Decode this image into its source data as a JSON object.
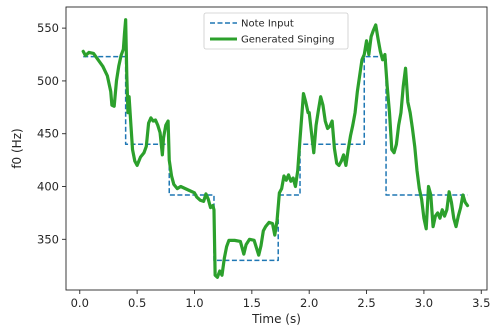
{
  "chart_data": {
    "type": "line",
    "title": "",
    "xlabel": "Time (s)",
    "ylabel": "f0 (Hz)",
    "xlim": [
      -0.12,
      3.55
    ],
    "ylim": [
      302,
      570
    ],
    "xticks": [
      0.0,
      0.5,
      1.0,
      1.5,
      2.0,
      2.5,
      3.0,
      3.5
    ],
    "xtick_labels": [
      "0.0",
      "0.5",
      "1.0",
      "1.5",
      "2.0",
      "2.5",
      "3.0",
      "3.5"
    ],
    "yticks": [
      350,
      400,
      450,
      500,
      550
    ],
    "ytick_labels": [
      "350",
      "400",
      "450",
      "500",
      "550"
    ],
    "grid": false,
    "legend": {
      "placement": "top-center"
    },
    "series": [
      {
        "name": "Note Input",
        "style": "dashed",
        "color": "#1f77b4",
        "points": [
          [
            0.03,
            523
          ],
          [
            0.4,
            523
          ],
          [
            0.4,
            440
          ],
          [
            0.78,
            440
          ],
          [
            0.78,
            392
          ],
          [
            1.17,
            392
          ],
          [
            1.17,
            330
          ],
          [
            1.73,
            330
          ],
          [
            1.73,
            392
          ],
          [
            1.92,
            392
          ],
          [
            1.92,
            440
          ],
          [
            2.48,
            440
          ],
          [
            2.48,
            523
          ],
          [
            2.67,
            523
          ],
          [
            2.67,
            392
          ],
          [
            3.38,
            392
          ]
        ]
      },
      {
        "name": "Generated Singing",
        "style": "solid",
        "color": "#2ca02c",
        "points": [
          [
            0.03,
            528
          ],
          [
            0.05,
            524
          ],
          [
            0.08,
            527
          ],
          [
            0.12,
            526
          ],
          [
            0.16,
            520
          ],
          [
            0.2,
            514
          ],
          [
            0.24,
            505
          ],
          [
            0.27,
            490
          ],
          [
            0.28,
            477
          ],
          [
            0.3,
            476
          ],
          [
            0.32,
            500
          ],
          [
            0.34,
            514
          ],
          [
            0.36,
            524
          ],
          [
            0.38,
            530
          ],
          [
            0.39,
            545
          ],
          [
            0.4,
            558
          ],
          [
            0.41,
            505
          ],
          [
            0.42,
            470
          ],
          [
            0.43,
            485
          ],
          [
            0.44,
            468
          ],
          [
            0.46,
            435
          ],
          [
            0.48,
            424
          ],
          [
            0.5,
            420
          ],
          [
            0.53,
            428
          ],
          [
            0.56,
            432
          ],
          [
            0.58,
            438
          ],
          [
            0.6,
            460
          ],
          [
            0.62,
            465
          ],
          [
            0.64,
            462
          ],
          [
            0.66,
            463
          ],
          [
            0.68,
            458
          ],
          [
            0.7,
            451
          ],
          [
            0.72,
            430
          ],
          [
            0.73,
            446
          ],
          [
            0.75,
            458
          ],
          [
            0.77,
            462
          ],
          [
            0.78,
            425
          ],
          [
            0.8,
            410
          ],
          [
            0.82,
            402
          ],
          [
            0.85,
            398
          ],
          [
            0.88,
            400
          ],
          [
            0.92,
            398
          ],
          [
            0.96,
            396
          ],
          [
            1.0,
            394
          ],
          [
            1.02,
            390
          ],
          [
            1.05,
            387
          ],
          [
            1.08,
            386
          ],
          [
            1.1,
            393
          ],
          [
            1.12,
            388
          ],
          [
            1.14,
            380
          ],
          [
            1.16,
            382
          ],
          [
            1.17,
            378
          ],
          [
            1.18,
            316
          ],
          [
            1.2,
            314
          ],
          [
            1.22,
            320
          ],
          [
            1.24,
            316
          ],
          [
            1.26,
            332
          ],
          [
            1.28,
            343
          ],
          [
            1.3,
            349
          ],
          [
            1.35,
            349
          ],
          [
            1.4,
            348
          ],
          [
            1.43,
            336
          ],
          [
            1.45,
            345
          ],
          [
            1.48,
            350
          ],
          [
            1.52,
            349
          ],
          [
            1.56,
            335
          ],
          [
            1.58,
            344
          ],
          [
            1.6,
            358
          ],
          [
            1.62,
            362
          ],
          [
            1.65,
            366
          ],
          [
            1.68,
            365
          ],
          [
            1.7,
            354
          ],
          [
            1.72,
            368
          ],
          [
            1.74,
            394
          ],
          [
            1.76,
            398
          ],
          [
            1.78,
            410
          ],
          [
            1.8,
            406
          ],
          [
            1.82,
            411
          ],
          [
            1.84,
            405
          ],
          [
            1.86,
            408
          ],
          [
            1.88,
            400
          ],
          [
            1.9,
            415
          ],
          [
            1.92,
            445
          ],
          [
            1.95,
            488
          ],
          [
            1.97,
            480
          ],
          [
            1.99,
            470
          ],
          [
            2.0,
            470
          ],
          [
            2.02,
            451
          ],
          [
            2.04,
            432
          ],
          [
            2.06,
            458
          ],
          [
            2.08,
            472
          ],
          [
            2.1,
            485
          ],
          [
            2.12,
            477
          ],
          [
            2.14,
            462
          ],
          [
            2.16,
            455
          ],
          [
            2.18,
            457
          ],
          [
            2.2,
            462
          ],
          [
            2.22,
            436
          ],
          [
            2.24,
            422
          ],
          [
            2.26,
            420
          ],
          [
            2.28,
            424
          ],
          [
            2.3,
            430
          ],
          [
            2.32,
            420
          ],
          [
            2.34,
            435
          ],
          [
            2.36,
            448
          ],
          [
            2.38,
            458
          ],
          [
            2.4,
            470
          ],
          [
            2.42,
            490
          ],
          [
            2.44,
            505
          ],
          [
            2.46,
            520
          ],
          [
            2.48,
            525
          ],
          [
            2.5,
            538
          ],
          [
            2.52,
            525
          ],
          [
            2.54,
            542
          ],
          [
            2.56,
            548
          ],
          [
            2.58,
            553
          ],
          [
            2.6,
            540
          ],
          [
            2.62,
            528
          ],
          [
            2.64,
            520
          ],
          [
            2.66,
            525
          ],
          [
            2.68,
            495
          ],
          [
            2.7,
            470
          ],
          [
            2.72,
            435
          ],
          [
            2.74,
            432
          ],
          [
            2.76,
            440
          ],
          [
            2.78,
            458
          ],
          [
            2.8,
            470
          ],
          [
            2.82,
            495
          ],
          [
            2.84,
            512
          ],
          [
            2.86,
            480
          ],
          [
            2.88,
            470
          ],
          [
            2.9,
            455
          ],
          [
            2.92,
            438
          ],
          [
            2.94,
            415
          ],
          [
            2.96,
            398
          ],
          [
            2.98,
            388
          ],
          [
            3.0,
            370
          ],
          [
            3.02,
            360
          ],
          [
            3.04,
            400
          ],
          [
            3.06,
            392
          ],
          [
            3.08,
            362
          ],
          [
            3.1,
            372
          ],
          [
            3.12,
            375
          ],
          [
            3.14,
            370
          ],
          [
            3.16,
            378
          ],
          [
            3.18,
            372
          ],
          [
            3.2,
            378
          ],
          [
            3.22,
            395
          ],
          [
            3.24,
            385
          ],
          [
            3.26,
            370
          ],
          [
            3.28,
            362
          ],
          [
            3.3,
            372
          ],
          [
            3.32,
            380
          ],
          [
            3.34,
            392
          ],
          [
            3.36,
            385
          ],
          [
            3.38,
            382
          ]
        ]
      }
    ]
  }
}
